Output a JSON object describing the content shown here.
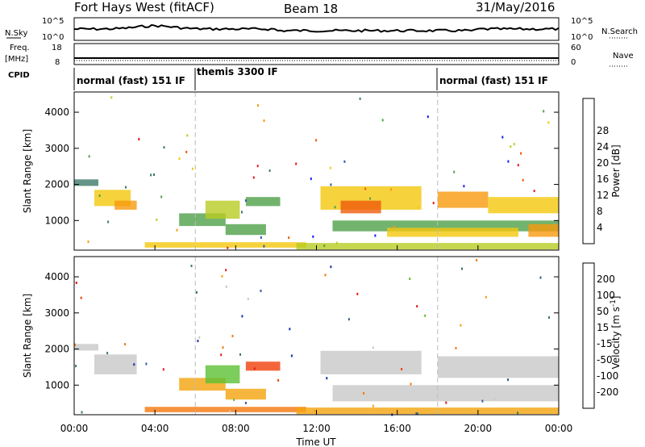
{
  "chart_data": {
    "type": "heatmap",
    "title": {
      "site": "Fort Hays West (fitACF)",
      "beam": "Beam 18",
      "date": "31/May/2016"
    },
    "xlabel": "Time UT",
    "x_ticks": [
      "00:00",
      "04:00",
      "08:00",
      "12:00",
      "16:00",
      "20:00",
      "00:00"
    ],
    "xlim_hours": [
      0,
      24
    ],
    "header_panels": {
      "nsky": {
        "label": "N.Sky",
        "right_label": "N.Search",
        "ticks": [
          "10^5",
          "10^0"
        ]
      },
      "freq": {
        "label_top": "Freq.",
        "label_bottom": "[MHz]",
        "right_label": "Nave",
        "left_ticks": [
          "18",
          "8"
        ],
        "right_ticks": [
          "60",
          "0"
        ]
      },
      "cpid": {
        "label": "CPID",
        "modes": [
          {
            "name": "normal (fast) 151 IF",
            "start_hour": 0,
            "end_hour": 6
          },
          {
            "name": "themis 3300 IF",
            "start_hour": 6,
            "end_hour": 18
          },
          {
            "name": "normal (fast) 151 IF",
            "start_hour": 18,
            "end_hour": 24
          }
        ]
      }
    },
    "panels": [
      {
        "name": "power",
        "ylabel": "Slant Range [km]",
        "yticks": [
          "1000",
          "2000",
          "3000",
          "4000"
        ],
        "ylim_km": [
          180,
          4560
        ],
        "colorbar": {
          "label": "Power [dB]",
          "ticks": [
            "4",
            "8",
            "12",
            "16",
            "20",
            "24",
            "28"
          ],
          "colors": [
            "#1a1aff",
            "#2a56b5",
            "#3d7a6a",
            "#4fa04a",
            "#b8cc22",
            "#f4c80c",
            "#f79a0c",
            "#f05a0a",
            "#e41a1a"
          ]
        },
        "regions": [
          {
            "t0": 0.0,
            "t1": 1.2,
            "r0": 1960,
            "r1": 2140,
            "level": 2
          },
          {
            "t0": 1.0,
            "t1": 2.8,
            "r0": 1400,
            "r1": 1850,
            "level": 5
          },
          {
            "t0": 2.0,
            "t1": 3.1,
            "r0": 1300,
            "r1": 1550,
            "level": 6
          },
          {
            "t0": 5.2,
            "t1": 7.5,
            "r0": 850,
            "r1": 1200,
            "level": 3
          },
          {
            "t0": 6.5,
            "t1": 8.2,
            "r0": 1050,
            "r1": 1550,
            "level": 4
          },
          {
            "t0": 8.5,
            "t1": 10.2,
            "r0": 1400,
            "r1": 1650,
            "level": 3
          },
          {
            "t0": 7.5,
            "t1": 9.5,
            "r0": 600,
            "r1": 900,
            "level": 3
          },
          {
            "t0": 12.2,
            "t1": 17.2,
            "r0": 1300,
            "r1": 1950,
            "level": 5
          },
          {
            "t0": 13.2,
            "t1": 15.2,
            "r0": 1200,
            "r1": 1550,
            "level": 7
          },
          {
            "t0": 12.8,
            "t1": 24.0,
            "r0": 700,
            "r1": 1000,
            "level": 3
          },
          {
            "t0": 15.5,
            "t1": 22.0,
            "r0": 550,
            "r1": 800,
            "level": 5
          },
          {
            "t0": 18.0,
            "t1": 20.5,
            "r0": 1350,
            "r1": 1800,
            "level": 6
          },
          {
            "t0": 20.5,
            "t1": 24.0,
            "r0": 1200,
            "r1": 1650,
            "level": 5
          },
          {
            "t0": 22.5,
            "t1": 24.0,
            "r0": 550,
            "r1": 900,
            "level": 6
          },
          {
            "t0": 3.5,
            "t1": 11.5,
            "r0": 250,
            "r1": 400,
            "level": 5
          },
          {
            "t0": 11.0,
            "t1": 24.0,
            "r0": 200,
            "r1": 380,
            "level": 4
          }
        ]
      },
      {
        "name": "velocity",
        "ylabel": "Slant Range [km]",
        "yticks": [
          "1000",
          "2000",
          "3000",
          "4000"
        ],
        "ylim_km": [
          180,
          4560
        ],
        "colorbar": {
          "label": "Velocity [m s^-1]",
          "unit_prefix": "Velocity [m s",
          "unit_exp": "-1",
          "unit_suffix": "]",
          "ticks": [
            "200",
            "100",
            "50",
            "15",
            "-15",
            "-50",
            "-100",
            "-200"
          ],
          "colors": [
            "#1a2fb0",
            "#3a5aa0",
            "#3f7a60",
            "#5cc033",
            "#c8c8c8",
            "#f4a40c",
            "#f5780c",
            "#f0400a",
            "#e41a1a"
          ]
        },
        "regions": [
          {
            "t0": 0.0,
            "t1": 1.2,
            "r0": 1960,
            "r1": 2140,
            "level": 4
          },
          {
            "t0": 1.0,
            "t1": 3.1,
            "r0": 1300,
            "r1": 1850,
            "level": 4
          },
          {
            "t0": 5.2,
            "t1": 7.5,
            "r0": 850,
            "r1": 1200,
            "level": 5
          },
          {
            "t0": 6.5,
            "t1": 8.2,
            "r0": 1050,
            "r1": 1550,
            "level": 3
          },
          {
            "t0": 8.5,
            "t1": 10.2,
            "r0": 1400,
            "r1": 1650,
            "level": 7
          },
          {
            "t0": 7.5,
            "t1": 9.5,
            "r0": 600,
            "r1": 900,
            "level": 5
          },
          {
            "t0": 12.2,
            "t1": 17.2,
            "r0": 1300,
            "r1": 1950,
            "level": 4
          },
          {
            "t0": 12.8,
            "t1": 24.0,
            "r0": 550,
            "r1": 1000,
            "level": 4
          },
          {
            "t0": 18.0,
            "t1": 24.0,
            "r0": 1200,
            "r1": 1800,
            "level": 4
          },
          {
            "t0": 3.5,
            "t1": 11.5,
            "r0": 250,
            "r1": 400,
            "level": 6
          },
          {
            "t0": 11.0,
            "t1": 24.0,
            "r0": 200,
            "r1": 380,
            "level": 5
          }
        ]
      }
    ]
  }
}
